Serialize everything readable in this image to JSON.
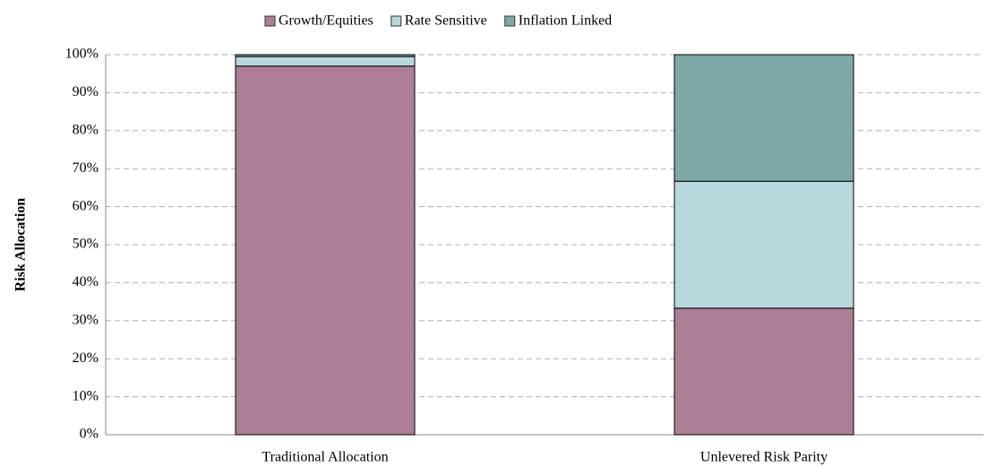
{
  "chart_data": {
    "type": "stacked_bar",
    "y_label": "Risk Allocation",
    "categories": [
      "Traditional Allocation",
      "Unlevered Risk Parity"
    ],
    "series": [
      {
        "name": "Growth/Equities",
        "color": "#ac7f97",
        "values": [
          97,
          33.3
        ]
      },
      {
        "name": "Rate Sensitive",
        "color": "#b6d8dd",
        "values": [
          2.5,
          33.4
        ]
      },
      {
        "name": "Inflation Linked",
        "color": "#7ea9a6",
        "values": [
          0.5,
          33.3
        ]
      }
    ],
    "ylim": [
      0,
      100
    ],
    "yticks": [
      {
        "value": 0,
        "label": "0%"
      },
      {
        "value": 10,
        "label": "10%"
      },
      {
        "value": 20,
        "label": "20%"
      },
      {
        "value": 30,
        "label": "30%"
      },
      {
        "value": 40,
        "label": "40%"
      },
      {
        "value": 50,
        "label": "50%"
      },
      {
        "value": 60,
        "label": "60%"
      },
      {
        "value": 70,
        "label": "70%"
      },
      {
        "value": 80,
        "label": "80%"
      },
      {
        "value": 90,
        "label": "90%"
      },
      {
        "value": 100,
        "label": "100%"
      }
    ],
    "grid": true,
    "legend": "top"
  }
}
